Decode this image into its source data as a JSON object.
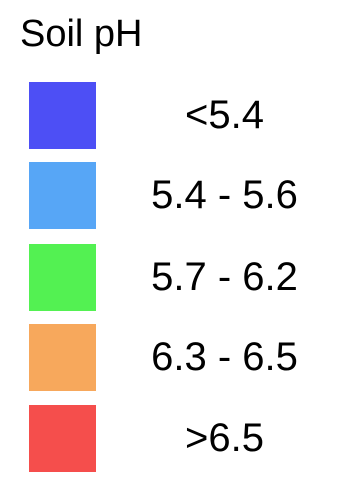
{
  "legend": {
    "title": "Soil pH",
    "items": [
      {
        "label": "<5.4",
        "color": "#4d4ff5"
      },
      {
        "label": "5.4 - 5.6",
        "color": "#57a6f6"
      },
      {
        "label": "5.7 - 6.2",
        "color": "#53f152"
      },
      {
        "label": "6.3 - 6.5",
        "color": "#f7a85c"
      },
      {
        "label": ">6.5",
        "color": "#f54e4c"
      }
    ]
  }
}
